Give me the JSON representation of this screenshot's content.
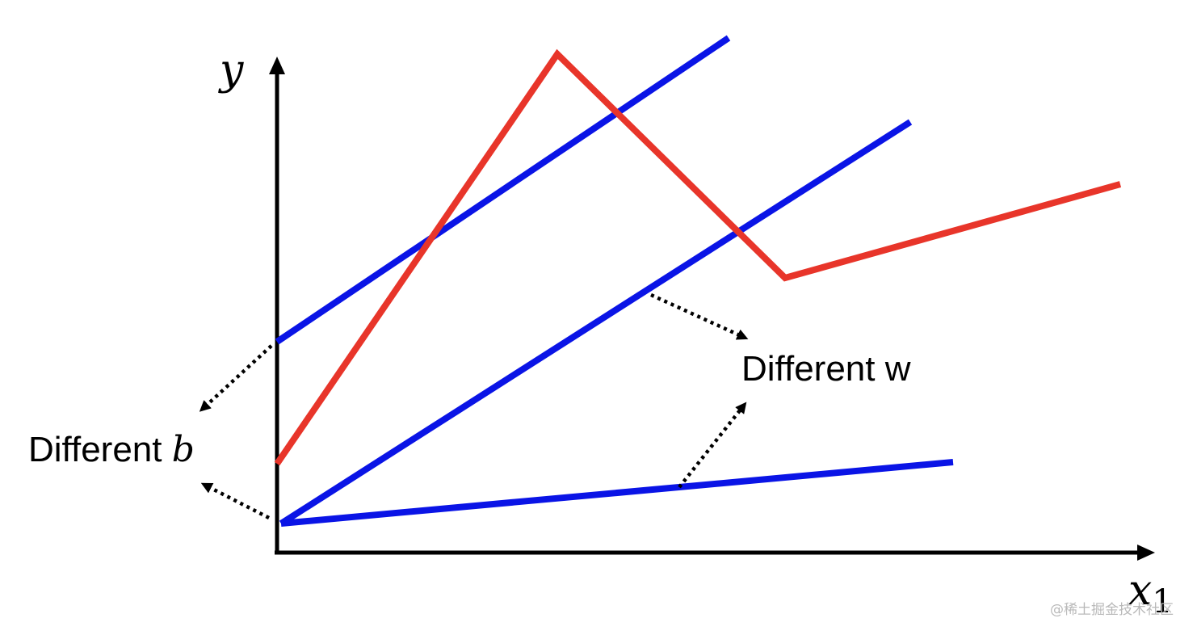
{
  "axes": {
    "y_label": "y",
    "x_label": "x",
    "x_subscript": "1"
  },
  "annotations": {
    "different_b": "Different ",
    "different_b_var": "b",
    "different_w": "Different w"
  },
  "watermark": "@稀土掘金技术社区",
  "colors": {
    "axis": "#000000",
    "blue_line": "#0a14e6",
    "red_curve": "#e8352a",
    "arrow": "#000000"
  }
}
